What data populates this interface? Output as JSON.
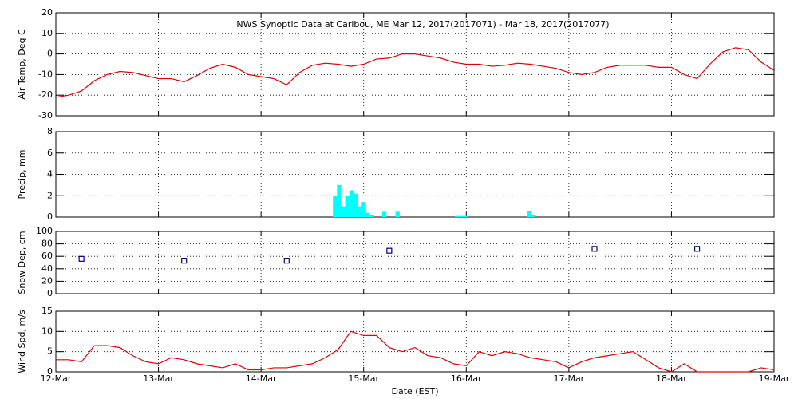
{
  "chart_data": [
    {
      "type": "line",
      "title": "NWS Synoptic Data at Caribou, ME   Mar 12, 2017(2017071) - Mar 18, 2017(2017077)",
      "y_label": "Air Temp, Deg C",
      "color": "#e00000",
      "grid": true,
      "xlim": [
        0,
        7
      ],
      "ylim": [
        -30,
        20
      ],
      "yticks": [
        -30,
        -20,
        -10,
        0,
        10,
        20
      ],
      "x": [
        0,
        0.125,
        0.25,
        0.375,
        0.5,
        0.625,
        0.75,
        0.875,
        1,
        1.125,
        1.25,
        1.375,
        1.5,
        1.625,
        1.75,
        1.875,
        2,
        2.125,
        2.25,
        2.375,
        2.5,
        2.625,
        2.75,
        2.875,
        3,
        3.125,
        3.25,
        3.375,
        3.5,
        3.625,
        3.75,
        3.875,
        4,
        4.125,
        4.25,
        4.375,
        4.5,
        4.625,
        4.75,
        4.875,
        5,
        5.125,
        5.25,
        5.375,
        5.5,
        5.625,
        5.75,
        5.875,
        6,
        6.125,
        6.25,
        6.375,
        6.5,
        6.625,
        6.75,
        6.875,
        7
      ],
      "values": [
        -21,
        -20,
        -18,
        -13,
        -10,
        -8.5,
        -9,
        -10.5,
        -12,
        -12,
        -13.5,
        -10.5,
        -7,
        -5,
        -6.5,
        -10,
        -11,
        -12,
        -15,
        -9,
        -5.5,
        -4.5,
        -5,
        -6,
        -5,
        -2.5,
        -2,
        0,
        0,
        -1,
        -2,
        -4,
        -5,
        -5,
        -6,
        -5.5,
        -4.5,
        -5,
        -6,
        -7,
        -9,
        -10,
        -9,
        -6.5,
        -5.5,
        -5.5,
        -5.5,
        -6.5,
        -6.5,
        -10,
        -12,
        -5,
        1,
        3,
        2,
        -4,
        -8
      ]
    },
    {
      "type": "bar",
      "y_label": "Precip, mm",
      "color": "#00ffff",
      "grid": true,
      "xlim": [
        0,
        7
      ],
      "ylim": [
        0,
        8
      ],
      "yticks": [
        0,
        2,
        4,
        6,
        8
      ],
      "x": [
        2.7,
        2.74,
        2.78,
        2.82,
        2.86,
        2.9,
        2.94,
        2.98,
        3.02,
        3.06,
        3.18,
        3.31,
        3.89,
        3.93,
        3.97,
        4.59,
        4.63
      ],
      "values": [
        2.0,
        3.0,
        1.0,
        2.0,
        2.5,
        2.2,
        1.0,
        1.4,
        0.4,
        0.2,
        0.5,
        0.5,
        0.1,
        0.1,
        0.1,
        0.6,
        0.2
      ]
    },
    {
      "type": "scatter",
      "y_label": "Snow Dep, cm",
      "color": "#000080",
      "grid": true,
      "xlim": [
        0,
        7
      ],
      "ylim": [
        0,
        100
      ],
      "yticks": [
        0,
        20,
        40,
        60,
        80,
        100
      ],
      "x": [
        0.25,
        1.25,
        2.25,
        3.25,
        5.25,
        6.25
      ],
      "values": [
        56,
        53,
        53,
        69,
        72,
        72
      ]
    },
    {
      "type": "line",
      "y_label": "Wind Spd, m/s",
      "x_label": "Date (EST)",
      "color": "#e00000",
      "grid": true,
      "xlim": [
        0,
        7
      ],
      "ylim": [
        0,
        15
      ],
      "yticks": [
        0,
        5,
        10,
        15
      ],
      "xticks": [
        {
          "value": 0,
          "label": "12-Mar"
        },
        {
          "value": 1,
          "label": "13-Mar"
        },
        {
          "value": 2,
          "label": "14-Mar"
        },
        {
          "value": 3,
          "label": "15-Mar"
        },
        {
          "value": 4,
          "label": "16-Mar"
        },
        {
          "value": 5,
          "label": "17-Mar"
        },
        {
          "value": 6,
          "label": "18-Mar"
        },
        {
          "value": 7,
          "label": "19-Mar"
        }
      ],
      "x": [
        0,
        0.125,
        0.25,
        0.375,
        0.5,
        0.625,
        0.75,
        0.875,
        1,
        1.125,
        1.25,
        1.375,
        1.5,
        1.625,
        1.75,
        1.875,
        2,
        2.125,
        2.25,
        2.375,
        2.5,
        2.625,
        2.75,
        2.875,
        3,
        3.125,
        3.25,
        3.375,
        3.5,
        3.625,
        3.75,
        3.875,
        4,
        4.125,
        4.25,
        4.375,
        4.5,
        4.625,
        4.75,
        4.875,
        5,
        5.125,
        5.25,
        5.375,
        5.5,
        5.625,
        5.75,
        5.875,
        6,
        6.125,
        6.25,
        6.375,
        6.5,
        6.625,
        6.75,
        6.875,
        7
      ],
      "values": [
        3,
        3,
        2.5,
        6.5,
        6.5,
        6,
        4,
        2.5,
        2,
        3.5,
        3,
        2,
        1.5,
        1,
        2,
        0.5,
        0.5,
        1,
        1,
        1.5,
        2,
        3.5,
        5.5,
        10,
        9,
        9,
        6,
        5,
        6,
        4,
        3.5,
        2,
        1.5,
        5,
        4,
        5,
        4.5,
        3.5,
        3,
        2.5,
        1,
        2.5,
        3.5,
        4,
        4.5,
        5,
        3,
        1,
        0,
        2,
        0,
        0,
        0,
        0,
        0,
        1,
        0.5
      ]
    }
  ]
}
